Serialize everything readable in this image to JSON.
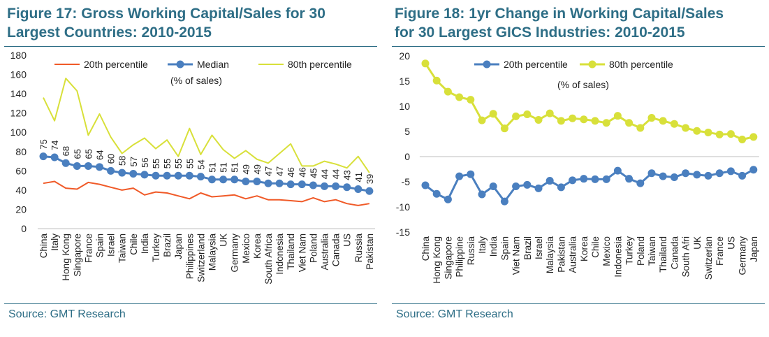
{
  "chart_data": [
    {
      "type": "line",
      "title": "Figure 17: Gross Working Capital/Sales for 30 Largest Countries: 2010-2015",
      "title_lines": [
        "Figure 17: Gross Working Capital/Sales for 30",
        "Largest Countries: 2010-2015"
      ],
      "source": "Source: GMT Research",
      "annotation": "(% of sales)",
      "ylim": [
        0,
        180
      ],
      "yticks": [
        "0",
        "20",
        "40",
        "60",
        "80",
        "100",
        "120",
        "140",
        "160",
        "180"
      ],
      "categories": [
        "China",
        "Italy",
        "Hong Kong",
        "Singapore",
        "France",
        "Spain",
        "Israel",
        "Taiwan",
        "Chile",
        "India",
        "Turkey",
        "Brazil",
        "Japan",
        "Philippines",
        "Switzerland",
        "Malaysia",
        "UK",
        "Germany",
        "Mexico",
        "Korea",
        "South Africa",
        "Indonesia",
        "Thailand",
        "Viet Nam",
        "Poland",
        "Australia",
        "Canada",
        "US",
        "Russia",
        "Pakistan"
      ],
      "series": [
        {
          "name": "20th percentile",
          "color": "#f05a28",
          "marker": false,
          "values": [
            47,
            49,
            42,
            41,
            48,
            46,
            43,
            40,
            42,
            35,
            38,
            37,
            34,
            31,
            37,
            33,
            34,
            35,
            31,
            34,
            30,
            30,
            29,
            28,
            32,
            28,
            30,
            26,
            24,
            26
          ]
        },
        {
          "name": "Median",
          "color": "#4a7fbf",
          "marker": true,
          "values": [
            75,
            74,
            68,
            65,
            65,
            64,
            60,
            58,
            57,
            56,
            55,
            55,
            55,
            55,
            54,
            51,
            51,
            51,
            49,
            49,
            47,
            47,
            46,
            46,
            45,
            44,
            44,
            43,
            41,
            39
          ]
        },
        {
          "name": "80th percentile",
          "color": "#d8e03a",
          "marker": false,
          "values": [
            136,
            112,
            156,
            143,
            97,
            119,
            95,
            78,
            87,
            94,
            83,
            92,
            75,
            104,
            77,
            97,
            82,
            73,
            81,
            72,
            68,
            78,
            88,
            65,
            65,
            70,
            67,
            63,
            75,
            58
          ]
        }
      ],
      "data_labels": [
        "75",
        "74",
        "68",
        "65",
        "65",
        "64",
        "60",
        "58",
        "57",
        "56",
        "55",
        "55",
        "55",
        "55",
        "54",
        "51",
        "51",
        "51",
        "49",
        "49",
        "47",
        "47",
        "46",
        "46",
        "45",
        "44",
        "44",
        "43",
        "41",
        "39"
      ]
    },
    {
      "type": "line",
      "title": "Figure 18: 1yr Change in Working Capital/Sales for 30 Largest GICS Industries: 2010-2015",
      "title_lines": [
        "Figure 18: 1yr Change in Working Capital/Sales",
        "for 30 Largest GICS Industries: 2010-2015"
      ],
      "source": "Source: GMT Research",
      "annotation": "(% of sales)",
      "ylim": [
        -15,
        20
      ],
      "yticks": [
        "-15",
        "-10",
        "-5",
        "0",
        "5",
        "10",
        "15",
        "20"
      ],
      "categories": [
        "China",
        "Hong Kong",
        "Singapore",
        "Philippine",
        "Russia",
        "Italy",
        "India",
        "Spain",
        "Viet Nam",
        "Brazil",
        "Israel",
        "Malaysia",
        "Pakistan",
        "Australia",
        "Korea",
        "Chile",
        "Mexico",
        "Indonesia",
        "Turkey",
        "Poland",
        "Taiwan",
        "Thailand",
        "Canada",
        "South Afri",
        "UK",
        "Switzerlan",
        "France",
        "US",
        "Germany",
        "Japan"
      ],
      "series": [
        {
          "name": "20th percentile",
          "color": "#4a7fbf",
          "marker": true,
          "values": [
            -5.7,
            -7.4,
            -8.5,
            -3.9,
            -3.5,
            -7.5,
            -5.9,
            -8.9,
            -5.9,
            -5.6,
            -6.3,
            -4.8,
            -6.1,
            -4.7,
            -4.4,
            -4.5,
            -4.5,
            -2.8,
            -4.4,
            -5.3,
            -3.3,
            -3.9,
            -4.1,
            -3.3,
            -3.6,
            -3.8,
            -3.3,
            -2.9,
            -3.8,
            -2.6
          ]
        },
        {
          "name": "80th percentile",
          "color": "#d8e03a",
          "marker": true,
          "values": [
            18.5,
            15.1,
            12.9,
            11.8,
            11.3,
            7.2,
            8.5,
            5.6,
            8.0,
            8.4,
            7.3,
            8.6,
            7.1,
            7.6,
            7.4,
            7.1,
            6.7,
            8.1,
            6.7,
            5.7,
            7.7,
            7.1,
            6.5,
            5.7,
            5.1,
            4.8,
            4.4,
            4.5,
            3.4,
            3.9
          ]
        }
      ]
    }
  ]
}
